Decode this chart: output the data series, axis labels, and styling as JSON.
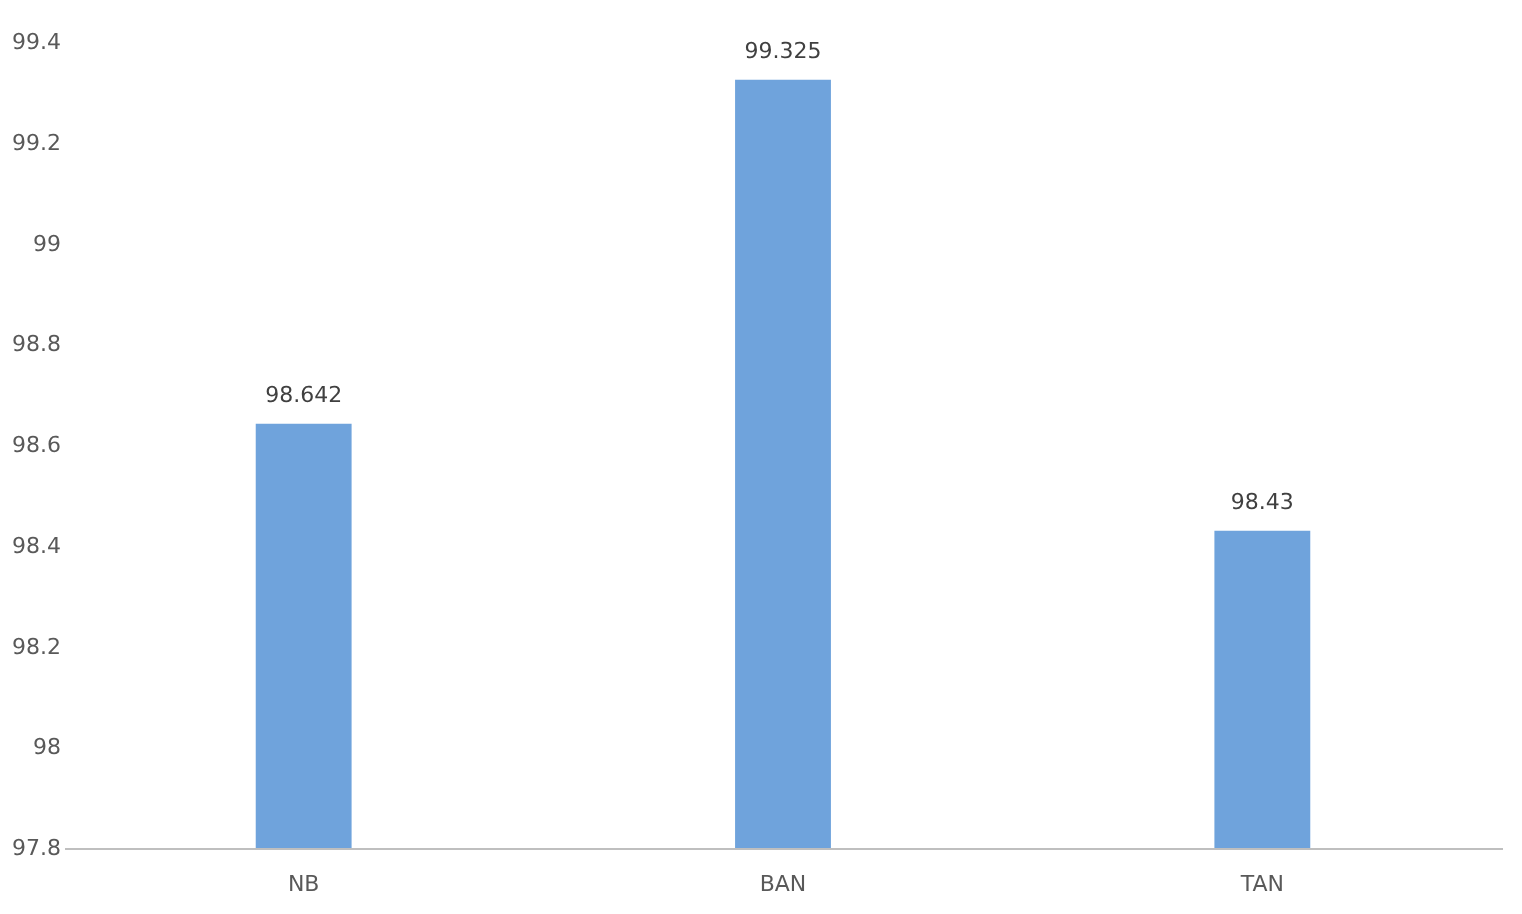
{
  "chart_data": {
    "type": "bar",
    "categories": [
      "NB",
      "BAN",
      "TAN"
    ],
    "values": [
      98.642,
      99.325,
      98.43
    ],
    "color": "#6fa3dc",
    "ylim": [
      97.8,
      99.4
    ],
    "yticks": [
      97.8,
      98,
      98.2,
      98.4,
      98.6,
      98.8,
      99,
      99.2,
      99.4
    ],
    "data_labels": true,
    "grid": false
  }
}
